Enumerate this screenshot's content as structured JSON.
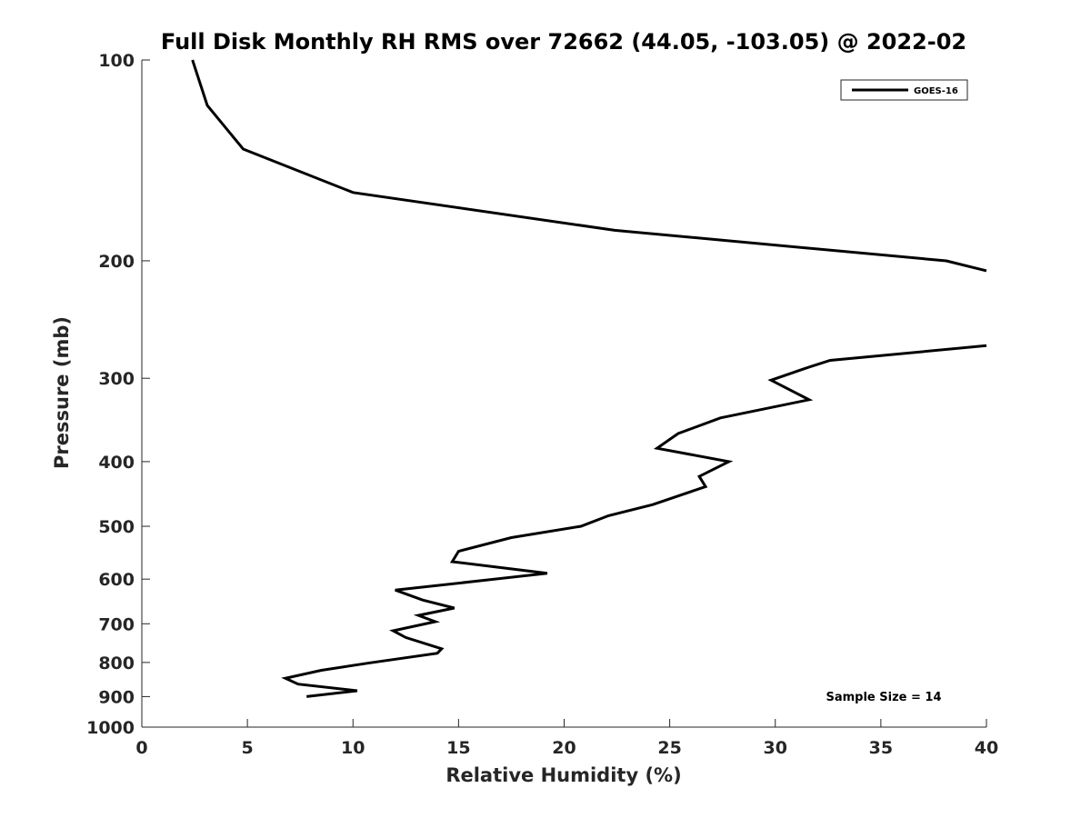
{
  "chart_data": {
    "type": "line",
    "title": "Full Disk Monthly RH RMS over 72662 (44.05, -103.05) @ 2022-02",
    "xlabel": "Relative Humidity (%)",
    "ylabel": "Pressure (mb)",
    "xlim": [
      0,
      40
    ],
    "ylim": [
      100,
      1000
    ],
    "yscale": "log",
    "y_reversed": true,
    "x_ticks": [
      "0",
      "5",
      "10",
      "15",
      "20",
      "25",
      "30",
      "35",
      "40"
    ],
    "y_ticks": [
      "100",
      "200",
      "300",
      "400",
      "500",
      "600",
      "700",
      "800",
      "900",
      "1000"
    ],
    "grid": false,
    "legend": {
      "position": "top-right",
      "entries": [
        "GOES-16"
      ]
    },
    "annotation": "Sample Size = 14",
    "series": [
      {
        "name": "GOES-16",
        "color": "#000000",
        "segments": [
          [
            [
              2.4,
              100
            ],
            [
              3.1,
              117
            ],
            [
              4.8,
              136
            ],
            [
              10.0,
              158
            ],
            [
              22.4,
              180
            ],
            [
              38.1,
              200
            ],
            [
              40.0,
              207
            ]
          ],
          [
            [
              40.0,
              268
            ],
            [
              32.6,
              282
            ],
            [
              31.4,
              290
            ],
            [
              29.8,
              302
            ],
            [
              31.6,
              323
            ],
            [
              27.4,
              344
            ],
            [
              25.4,
              363
            ],
            [
              24.4,
              382
            ],
            [
              27.8,
              400
            ],
            [
              26.4,
              421
            ],
            [
              26.7,
              436
            ],
            [
              24.2,
              464
            ],
            [
              22.1,
              482
            ],
            [
              20.8,
              500
            ],
            [
              17.5,
              520
            ],
            [
              15.0,
              545
            ],
            [
              14.7,
              565
            ],
            [
              19.2,
              588
            ],
            [
              16.1,
              603
            ],
            [
              12.0,
              623
            ],
            [
              13.3,
              645
            ],
            [
              14.8,
              663
            ],
            [
              13.1,
              680
            ],
            [
              13.9,
              695
            ],
            [
              11.9,
              717
            ],
            [
              12.5,
              734
            ],
            [
              14.2,
              763
            ],
            [
              14.0,
              775
            ],
            [
              10.8,
              801
            ],
            [
              8.5,
              822
            ],
            [
              6.8,
              845
            ],
            [
              7.4,
              862
            ],
            [
              10.2,
              882
            ],
            [
              7.8,
              900
            ]
          ]
        ]
      }
    ]
  }
}
